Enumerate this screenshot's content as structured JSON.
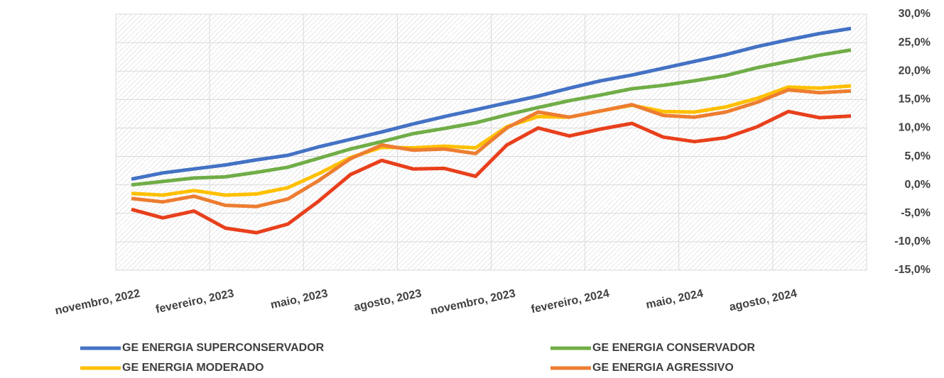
{
  "chart_data": {
    "type": "line",
    "categories": [
      "novembro, 2022",
      null,
      null,
      "fevereiro, 2023",
      null,
      null,
      "maio, 2023",
      null,
      null,
      "agosto, 2023",
      null,
      null,
      "novembro, 2023",
      null,
      null,
      "fevereiro, 2024",
      null,
      null,
      "maio, 2024",
      null,
      null,
      "agosto, 2024",
      null,
      null
    ],
    "series": [
      {
        "name": "GE ENERGIA SUPERCONSERVADOR",
        "color": "#4472c4",
        "values": [
          1.0,
          2.1,
          2.8,
          3.5,
          4.4,
          5.2,
          6.7,
          8.0,
          9.3,
          10.7,
          12.0,
          13.2,
          14.4,
          15.6,
          17.0,
          18.3,
          19.3,
          20.5,
          21.7,
          22.9,
          24.3,
          25.5,
          26.6,
          27.5
        ]
      },
      {
        "name": "GE ENERGIA CONSERVADOR",
        "color": "#70ad47",
        "values": [
          0.0,
          0.6,
          1.2,
          1.4,
          2.2,
          3.1,
          4.7,
          6.3,
          7.6,
          9.0,
          9.9,
          10.9,
          12.3,
          13.6,
          14.8,
          15.8,
          16.9,
          17.5,
          18.3,
          19.2,
          20.6,
          21.7,
          22.8,
          23.7
        ]
      },
      {
        "name": "GE ENERGIA MODERADO",
        "color": "#ffc000",
        "values": [
          -1.5,
          -1.8,
          -1.0,
          -1.8,
          -1.6,
          -0.5,
          2.0,
          4.8,
          6.6,
          6.5,
          6.8,
          6.5,
          10.2,
          12.0,
          11.9,
          13.0,
          14.0,
          12.9,
          12.8,
          13.7,
          15.2,
          17.2,
          17.0,
          17.4
        ]
      },
      {
        "name": "GE ENERGIA AGRESSIVO",
        "color": "#ed7d31",
        "values": [
          -2.4,
          -3.0,
          -2.0,
          -3.6,
          -3.8,
          -2.5,
          0.8,
          4.6,
          7.0,
          6.1,
          6.3,
          5.5,
          10.0,
          12.8,
          11.9,
          13.0,
          14.1,
          12.2,
          11.9,
          12.8,
          14.5,
          16.7,
          16.2,
          16.5
        ]
      },
      {
        "color": "#e8401c",
        "values": [
          -4.3,
          -5.8,
          -4.6,
          -7.6,
          -8.4,
          -6.9,
          -2.8,
          1.8,
          4.3,
          2.8,
          2.9,
          1.5,
          7.0,
          10.0,
          8.6,
          9.8,
          10.8,
          8.4,
          7.6,
          8.3,
          10.2,
          12.9,
          11.8,
          12.1
        ]
      }
    ],
    "ylim": [
      -15,
      30
    ],
    "yticks": [
      {
        "value": -15,
        "label": "-15,0%"
      },
      {
        "value": -10,
        "label": "-10,0%"
      },
      {
        "value": -5,
        "label": "-5,0%"
      },
      {
        "value": 0,
        "label": "0,0%"
      },
      {
        "value": 5,
        "label": "5,0%"
      },
      {
        "value": 10,
        "label": "10,0%"
      },
      {
        "value": 15,
        "label": "15,0%"
      },
      {
        "value": 20,
        "label": "20,0%"
      },
      {
        "value": 25,
        "label": "25,0%"
      },
      {
        "value": 30,
        "label": "30,0%"
      }
    ],
    "y_axis_side": "right",
    "grid": true
  }
}
